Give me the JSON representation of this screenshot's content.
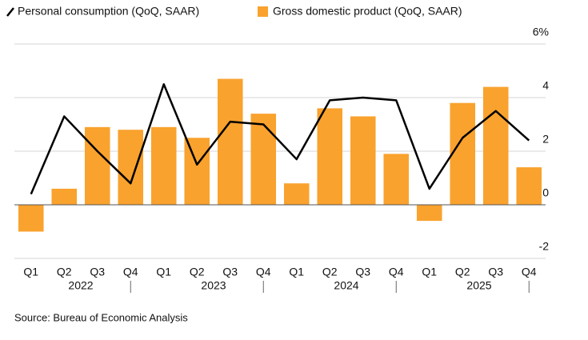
{
  "chart_data": {
    "type": "bar",
    "categories": [
      "Q1",
      "Q2",
      "Q3",
      "Q4",
      "Q1",
      "Q2",
      "Q3",
      "Q4",
      "Q1",
      "Q2",
      "Q3",
      "Q4",
      "Q1",
      "Q2",
      "Q3",
      "Q4"
    ],
    "groups": [
      "2022",
      "2023",
      "2024",
      "2025"
    ],
    "series": [
      {
        "name": "Personal consumption (QoQ, SAAR)",
        "type": "line",
        "color": "#000000",
        "values": [
          0.4,
          3.3,
          2.0,
          0.8,
          4.5,
          1.5,
          3.1,
          3.0,
          1.7,
          3.9,
          4.0,
          3.9,
          0.6,
          2.5,
          3.5,
          2.4
        ]
      },
      {
        "name": "Gross domestic product (QoQ, SAAR)",
        "type": "bar",
        "color": "#f9a22d",
        "values": [
          -1.0,
          0.6,
          2.9,
          2.8,
          2.9,
          2.5,
          4.7,
          3.4,
          0.8,
          3.6,
          3.3,
          1.9,
          -0.6,
          3.8,
          4.4,
          1.4
        ]
      }
    ],
    "ylim": [
      -2,
      6
    ],
    "yticks": [
      -2,
      0,
      2,
      4,
      {
        "value": 6,
        "label": "6%"
      }
    ],
    "grid": true,
    "source": "Source: Bureau of Economic Analysis"
  }
}
